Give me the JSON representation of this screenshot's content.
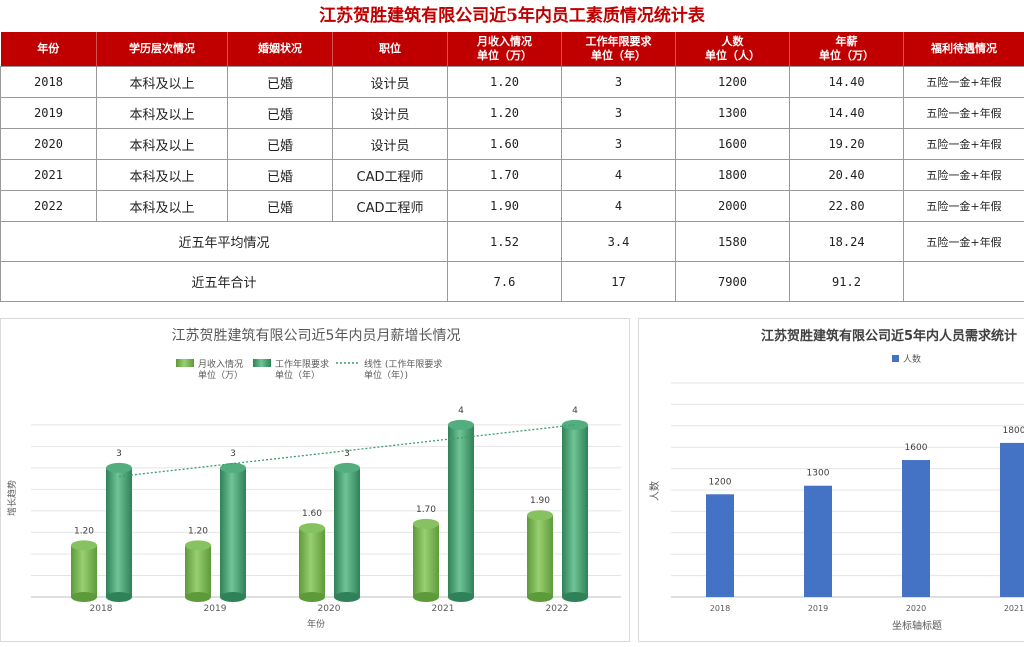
{
  "title": "江苏贺胜建筑有限公司近5年内员工素质情况统计表",
  "table": {
    "headers": [
      "年份",
      "学历层次情况",
      "婚姻状况",
      "职位",
      "月收入情况\n单位（万）",
      "工作年限要求\n单位（年）",
      "人数\n单位（人）",
      "年薪\n单位（万）",
      "福利待遇情况"
    ],
    "rows": [
      [
        "2018",
        "本科及以上",
        "已婚",
        "设计员",
        "1.20",
        "3",
        "1200",
        "14.40",
        "五险一金+年假"
      ],
      [
        "2019",
        "本科及以上",
        "已婚",
        "设计员",
        "1.20",
        "3",
        "1300",
        "14.40",
        "五险一金+年假"
      ],
      [
        "2020",
        "本科及以上",
        "已婚",
        "设计员",
        "1.60",
        "3",
        "1600",
        "19.20",
        "五险一金+年假"
      ],
      [
        "2021",
        "本科及以上",
        "已婚",
        "CAD工程师",
        "1.70",
        "4",
        "1800",
        "20.40",
        "五险一金+年假"
      ],
      [
        "2022",
        "本科及以上",
        "已婚",
        "CAD工程师",
        "1.90",
        "4",
        "2000",
        "22.80",
        "五险一金+年假"
      ]
    ],
    "average": {
      "label": "近五年平均情况",
      "values": [
        "1.52",
        "3.4",
        "1580",
        "18.24",
        "五险一金+年假"
      ]
    },
    "total": {
      "label": "近五年合计",
      "values": [
        "7.6",
        "17",
        "7900",
        "91.2",
        ""
      ]
    }
  },
  "chart_data": [
    {
      "type": "bar",
      "title": "江苏贺胜建筑有限公司近5年内员月薪增长情况",
      "xlabel": "年份",
      "ylabel": "增长趋势",
      "categories": [
        "2018",
        "2019",
        "2020",
        "2021",
        "2022"
      ],
      "series": [
        {
          "name": "月收入情况\n单位（万）",
          "values": [
            1.2,
            1.2,
            1.6,
            1.7,
            1.9
          ],
          "labels": [
            "1.20",
            "1.20",
            "1.60",
            "1.70",
            "1.90"
          ],
          "color": "#70ad47"
        },
        {
          "name": "工作年限要求\n单位（年）",
          "values": [
            3,
            3,
            3,
            4,
            4
          ],
          "labels": [
            "3",
            "3",
            "3",
            "4",
            "4"
          ],
          "color": "#3a9a66"
        }
      ],
      "trendline": {
        "name": "线性 (工作年限要求\n单位（年）)",
        "color": "#3aa06a"
      },
      "ylim": [
        0,
        4.6
      ],
      "grid": true,
      "legend": "top"
    },
    {
      "type": "bar",
      "title": "江苏贺胜建筑有限公司近5年内人员需求统计",
      "xlabel": "坐标轴标题",
      "ylabel": "人数",
      "categories": [
        "2018",
        "2019",
        "2020",
        "2021"
      ],
      "series": [
        {
          "name": "人数",
          "values": [
            1200,
            1300,
            1600,
            1800
          ],
          "color": "#4472c4"
        }
      ],
      "ylim": [
        0,
        2500
      ],
      "grid": true,
      "legend": "top"
    }
  ]
}
